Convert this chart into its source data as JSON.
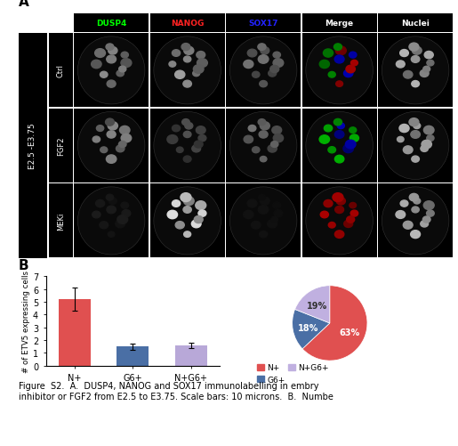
{
  "panel_A_label": "A",
  "panel_B_label": "B",
  "col_headers": [
    "DUSP4",
    "NANOG",
    "SOX17",
    "Merge",
    "Nuclei"
  ],
  "col_header_colors": [
    "#00ff00",
    "#ff2222",
    "#2222ff",
    "#ffffff",
    "#ffffff"
  ],
  "row_labels": [
    "Ctrl",
    "FGF2",
    "MEKi"
  ],
  "y_axis_label": "E2.5 -E3.75",
  "bar_categories": [
    "N+",
    "G6+",
    "N+G6+"
  ],
  "bar_values": [
    5.2,
    1.5,
    1.6
  ],
  "bar_errors": [
    0.9,
    0.25,
    0.2
  ],
  "bar_colors": [
    "#e05050",
    "#4a6fa5",
    "#b8a8d8"
  ],
  "bar_ylabel": "# of ETV5 expressing cells",
  "bar_ylim": [
    0,
    7
  ],
  "bar_yticks": [
    0,
    1,
    2,
    3,
    4,
    5,
    6,
    7
  ],
  "pie_values": [
    63,
    18,
    19
  ],
  "pie_labels": [
    "63%",
    "18%",
    "19%"
  ],
  "pie_colors": [
    "#e05050",
    "#4a6fa5",
    "#c0b0e0"
  ],
  "pie_legend_labels": [
    "N+",
    "G6+",
    "N+G6+"
  ],
  "caption_line1": "Figure  S2.  A.  DUSP4, NANOG and SOX17 immunolabelling in embry",
  "caption_line2": "inhibitor or FGF2 from E2.5 to E3.75. Scale bars: 10 microns.  B.  Numbe"
}
